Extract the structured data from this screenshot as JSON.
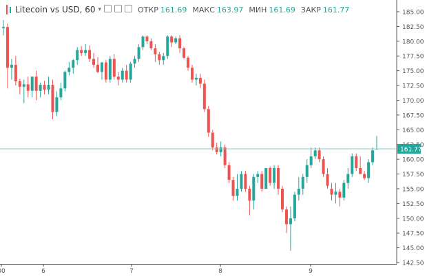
{
  "header": {
    "title": "Litecoin vs USD, 60",
    "icons": [
      "eye-icon",
      "gear-icon",
      "close-icon"
    ],
    "stats": [
      {
        "label": "ОТКР",
        "value": "161.69"
      },
      {
        "label": "МАКС",
        "value": "163.97"
      },
      {
        "label": "МИН",
        "value": "161.69"
      },
      {
        "label": "ЗАКР",
        "value": "161.77"
      }
    ]
  },
  "colors": {
    "up": "#26a69a",
    "down": "#ef5350",
    "grid": "#eeeeee",
    "axis": "#555555",
    "priceLine": "#80cbc4"
  },
  "chart_data": {
    "type": "candlestick",
    "title": "Litecoin vs USD, 60",
    "x_labels": [
      "00",
      "6",
      "7",
      "8",
      "9"
    ],
    "y_ticks": [
      "142.50",
      "145.00",
      "147.50",
      "150.00",
      "152.50",
      "155.00",
      "157.50",
      "160.00",
      "162.50",
      "165.00",
      "167.50",
      "170.00",
      "172.50",
      "175.00",
      "177.50",
      "180.00",
      "182.50",
      "185.00"
    ],
    "ylim": [
      142.5,
      185.0
    ],
    "last_price": "161.77",
    "ohlc": [
      [
        182.2,
        183.6,
        181.0,
        182.4
      ],
      [
        182.4,
        183.0,
        172.0,
        175.5
      ],
      [
        175.5,
        177.0,
        173.5,
        176.0
      ],
      [
        176.0,
        177.5,
        172.5,
        173.2
      ],
      [
        173.2,
        173.6,
        171.0,
        172.3
      ],
      [
        172.3,
        173.5,
        169.5,
        172.7
      ],
      [
        172.7,
        174.0,
        170.5,
        171.6
      ],
      [
        171.6,
        174.0,
        170.5,
        174.0
      ],
      [
        174.0,
        175.0,
        170.0,
        171.6
      ],
      [
        171.6,
        173.0,
        170.5,
        172.6
      ],
      [
        172.6,
        173.3,
        171.0,
        171.8
      ],
      [
        171.8,
        174.0,
        171.0,
        172.6
      ],
      [
        172.6,
        173.5,
        166.8,
        168.0
      ],
      [
        168.0,
        171.5,
        167.3,
        170.5
      ],
      [
        170.5,
        173.0,
        170.0,
        172.0
      ],
      [
        172.0,
        175.0,
        171.5,
        174.8
      ],
      [
        174.8,
        176.5,
        174.2,
        175.5
      ],
      [
        175.5,
        177.0,
        174.5,
        176.8
      ],
      [
        176.8,
        179.0,
        176.0,
        178.5
      ],
      [
        178.5,
        179.2,
        177.5,
        178.0
      ],
      [
        178.0,
        179.5,
        177.5,
        178.5
      ],
      [
        178.5,
        179.3,
        176.5,
        177.0
      ],
      [
        177.0,
        178.0,
        175.5,
        176.0
      ],
      [
        176.0,
        177.3,
        174.6,
        174.8
      ],
      [
        174.8,
        176.5,
        173.5,
        176.4
      ],
      [
        176.4,
        176.8,
        173.0,
        173.5
      ],
      [
        173.5,
        177.5,
        173.0,
        177.0
      ],
      [
        177.0,
        177.8,
        173.5,
        174.0
      ],
      [
        174.0,
        174.8,
        172.5,
        173.5
      ],
      [
        173.5,
        175.5,
        173.0,
        175.0
      ],
      [
        175.0,
        176.0,
        173.0,
        173.5
      ],
      [
        173.5,
        176.5,
        173.0,
        176.2
      ],
      [
        176.2,
        177.5,
        175.5,
        177.0
      ],
      [
        177.0,
        179.5,
        176.5,
        179.0
      ],
      [
        179.0,
        181.0,
        178.5,
        180.8
      ],
      [
        180.8,
        181.0,
        179.5,
        180.0
      ],
      [
        180.0,
        180.5,
        178.5,
        178.8
      ],
      [
        178.8,
        179.5,
        176.5,
        177.8
      ],
      [
        177.8,
        178.2,
        176.0,
        176.8
      ],
      [
        176.8,
        178.0,
        176.0,
        177.5
      ],
      [
        177.5,
        181.0,
        177.0,
        180.8
      ],
      [
        180.8,
        181.0,
        179.0,
        179.8
      ],
      [
        179.8,
        180.8,
        179.5,
        180.5
      ],
      [
        180.5,
        181.0,
        178.0,
        178.8
      ],
      [
        178.8,
        179.0,
        177.0,
        177.2
      ],
      [
        177.2,
        177.5,
        175.0,
        175.5
      ],
      [
        175.5,
        176.0,
        173.0,
        173.5
      ],
      [
        173.5,
        174.5,
        172.5,
        173.8
      ],
      [
        173.8,
        174.5,
        172.0,
        172.8
      ],
      [
        172.8,
        173.5,
        168.0,
        168.5
      ],
      [
        168.5,
        169.0,
        163.8,
        164.5
      ],
      [
        164.5,
        165.0,
        161.5,
        162.0
      ],
      [
        162.0,
        162.8,
        160.8,
        161.2
      ],
      [
        161.2,
        163.0,
        160.5,
        162.0
      ],
      [
        162.0,
        162.5,
        158.5,
        159.0
      ],
      [
        159.0,
        159.5,
        156.0,
        156.5
      ],
      [
        156.5,
        157.0,
        153.0,
        153.8
      ],
      [
        153.8,
        157.5,
        153.0,
        155.0
      ],
      [
        155.0,
        158.0,
        154.5,
        157.5
      ],
      [
        157.5,
        158.0,
        154.5,
        155.0
      ],
      [
        155.0,
        155.5,
        150.5,
        153.0
      ],
      [
        153.0,
        157.5,
        151.5,
        157.0
      ],
      [
        157.0,
        158.0,
        156.0,
        157.5
      ],
      [
        157.5,
        158.0,
        154.5,
        155.0
      ],
      [
        155.0,
        158.5,
        155.0,
        158.5
      ],
      [
        158.5,
        158.8,
        155.5,
        156.0
      ],
      [
        156.0,
        159.0,
        155.0,
        158.5
      ],
      [
        158.5,
        159.0,
        154.0,
        155.0
      ],
      [
        155.0,
        155.5,
        151.0,
        151.5
      ],
      [
        151.5,
        152.0,
        147.5,
        149.0
      ],
      [
        149.0,
        152.0,
        144.5,
        150.0
      ],
      [
        150.0,
        154.5,
        149.5,
        154.0
      ],
      [
        154.0,
        157.0,
        153.0,
        155.0
      ],
      [
        155.0,
        157.5,
        154.0,
        157.0
      ],
      [
        157.0,
        160.0,
        156.0,
        159.0
      ],
      [
        159.0,
        162.0,
        158.5,
        160.5
      ],
      [
        160.5,
        162.0,
        160.0,
        161.5
      ],
      [
        161.5,
        162.0,
        159.5,
        160.0
      ],
      [
        160.0,
        160.5,
        157.0,
        157.5
      ],
      [
        157.5,
        158.5,
        155.0,
        155.5
      ],
      [
        155.0,
        156.0,
        153.0,
        154.0
      ],
      [
        154.0,
        156.0,
        152.5,
        154.5
      ],
      [
        154.5,
        155.0,
        152.0,
        153.5
      ],
      [
        153.5,
        156.5,
        153.0,
        156.0
      ],
      [
        156.0,
        158.5,
        155.0,
        157.5
      ],
      [
        157.5,
        161.0,
        157.0,
        160.5
      ],
      [
        160.5,
        161.0,
        158.0,
        158.5
      ],
      [
        158.5,
        160.5,
        157.5,
        157.5
      ],
      [
        157.5,
        158.0,
        156.5,
        156.8
      ],
      [
        156.8,
        160.0,
        156.0,
        159.5
      ],
      [
        159.5,
        162.0,
        159.0,
        161.5
      ],
      [
        161.69,
        163.97,
        161.69,
        161.77
      ]
    ]
  }
}
